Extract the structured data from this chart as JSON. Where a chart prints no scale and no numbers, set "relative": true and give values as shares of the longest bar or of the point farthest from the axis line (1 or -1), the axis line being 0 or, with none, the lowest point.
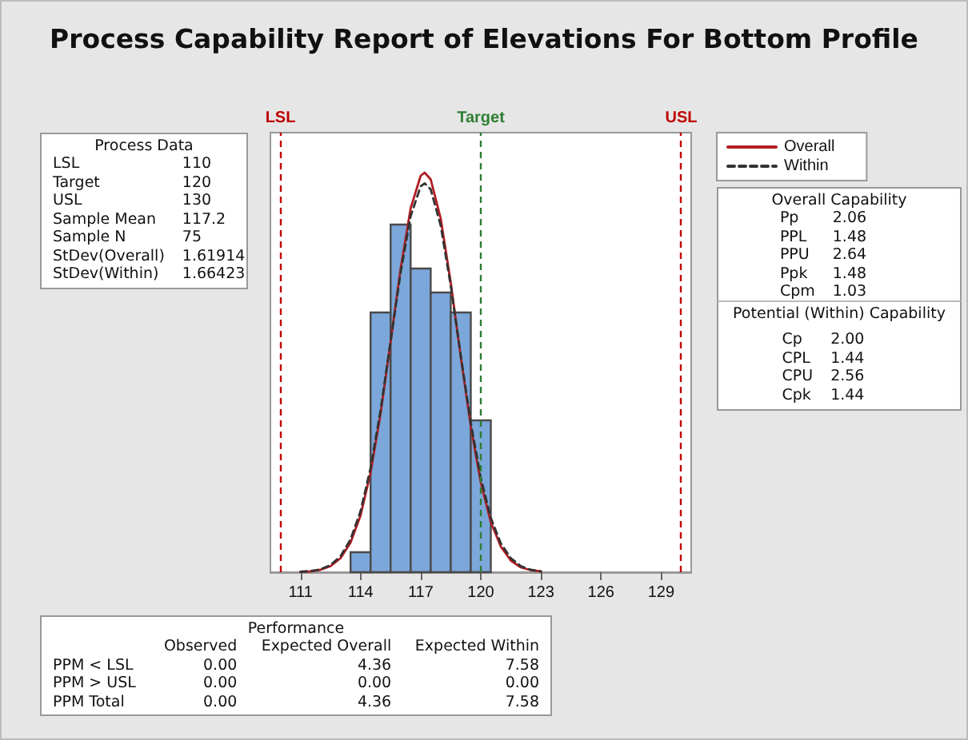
{
  "chart_data": [
    {
      "type": "histogram",
      "title": "Process Capability Report of Elevations For Bottom Profile",
      "relative": true,
      "bins": [
        113.5,
        114.5,
        115.5,
        116.5,
        117.5,
        118.5,
        119.5,
        120.5
      ],
      "values": [
        0.05,
        0.65,
        0.87,
        0.76,
        0.7,
        0.65,
        0.38
      ],
      "color": "#7ba7da",
      "xlim": [
        109.5,
        130.5
      ],
      "xticks": [
        111,
        114,
        117,
        120,
        123,
        126,
        129
      ],
      "tick_labels": "x",
      "grid": false,
      "legend": "top right",
      "series": [
        {
          "type": "line",
          "name": "Overall",
          "color": "#b01e23",
          "line_style": "solid",
          "x": [
            111,
            111.5,
            112,
            112.5,
            113,
            113.5,
            114,
            114.5,
            115,
            115.5,
            116,
            116.5,
            117,
            117.2,
            117.5,
            118,
            118.5,
            119,
            119.5,
            120,
            120.5,
            121,
            121.5,
            122,
            122.5,
            123
          ],
          "values": [
            0.001,
            0.002,
            0.006,
            0.015,
            0.035,
            0.074,
            0.142,
            0.249,
            0.397,
            0.577,
            0.76,
            0.911,
            0.992,
            1,
            0.983,
            0.885,
            0.725,
            0.539,
            0.365,
            0.224,
            0.125,
            0.064,
            0.029,
            0.012,
            0.005,
            0.002
          ]
        },
        {
          "type": "line",
          "name": "Within",
          "color": "#333333",
          "line_style": "dashed",
          "x": [
            111,
            111.5,
            112,
            112.5,
            113,
            113.5,
            114,
            114.5,
            115,
            115.5,
            116,
            116.5,
            117,
            117.2,
            117.5,
            118,
            118.5,
            119,
            119.5,
            120,
            120.5,
            121,
            121.5,
            122,
            122.5,
            123
          ],
          "values": [
            0.001,
            0.003,
            0.007,
            0.018,
            0.04,
            0.082,
            0.153,
            0.261,
            0.406,
            0.578,
            0.75,
            0.891,
            0.966,
            0.973,
            0.958,
            0.867,
            0.717,
            0.542,
            0.374,
            0.236,
            0.136,
            0.072,
            0.035,
            0.015,
            0.006,
            0.002
          ]
        }
      ],
      "ref_lines": [
        {
          "axis": "x",
          "value": 110,
          "label": "LSL",
          "color": "#c00000",
          "line_style": "dashed"
        },
        {
          "axis": "x",
          "value": 120,
          "label": "Target",
          "color": "#2e7d32",
          "line_style": "dashed"
        },
        {
          "axis": "x",
          "value": 130,
          "label": "USL",
          "color": "#c00000",
          "line_style": "dashed"
        }
      ]
    },
    {
      "type": "other",
      "title": "Process Data",
      "categories": [
        "LSL",
        "Target",
        "USL",
        "Sample Mean",
        "Sample N",
        "StDev(Overall)",
        "StDev(Within)"
      ],
      "value_labels": [
        "110",
        "120",
        "130",
        "117.2",
        "75",
        "1.61914",
        "1.66423"
      ]
    },
    {
      "type": "other",
      "title": "Overall Capability",
      "categories": [
        "Pp",
        "PPL",
        "PPU",
        "Ppk",
        "Cpm"
      ],
      "value_labels": [
        "2.06",
        "1.48",
        "2.64",
        "1.48",
        "1.03"
      ]
    },
    {
      "type": "other",
      "title": "Potential (Within) Capability",
      "categories": [
        "Cp",
        "CPL",
        "CPU",
        "Cpk"
      ],
      "value_labels": [
        "2.00",
        "1.44",
        "2.56",
        "1.44"
      ]
    },
    {
      "type": "other",
      "title": "Performance",
      "categories": [
        "PPM < LSL",
        "PPM > USL",
        "PPM Total"
      ],
      "series": [
        {
          "name": "Observed",
          "values": [
            0,
            0,
            0
          ],
          "value_labels": [
            "0.00",
            "0.00",
            "0.00"
          ]
        },
        {
          "name": "Expected Overall",
          "values": [
            4.36,
            0,
            4.36
          ],
          "value_labels": [
            "4.36",
            "0.00",
            "4.36"
          ]
        },
        {
          "name": "Expected Within",
          "values": [
            7.58,
            0,
            7.58
          ],
          "value_labels": [
            "7.58",
            "0.00",
            "7.58"
          ]
        }
      ]
    }
  ]
}
